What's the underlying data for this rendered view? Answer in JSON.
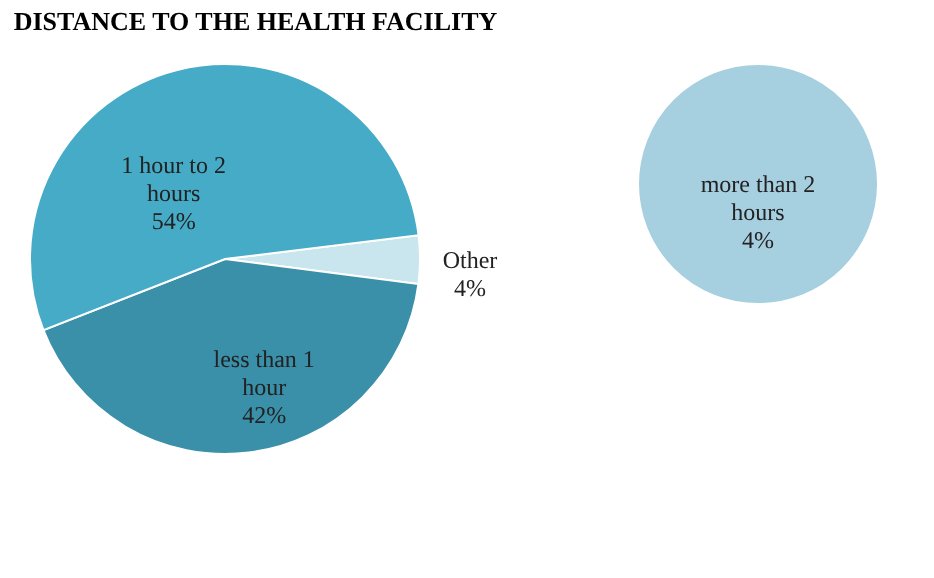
{
  "chart_data": [
    {
      "type": "pie",
      "title": "DISTANCE TO THE HEALTH FACILITY",
      "categories": [
        "Other",
        "less than 1 hour",
        "1 hour to 2 hours"
      ],
      "values": [
        4,
        42,
        54
      ],
      "colors": [
        "#c9e6ef",
        "#3a8fa9",
        "#45abc6"
      ],
      "value_labels": [
        "4%",
        "42%",
        "54%"
      ],
      "legend": false
    },
    {
      "type": "pie",
      "categories": [
        "more than 2 hours"
      ],
      "values": [
        4
      ],
      "colors": [
        "#a6cfe0"
      ],
      "value_labels": [
        "4%"
      ],
      "legend": false
    }
  ]
}
